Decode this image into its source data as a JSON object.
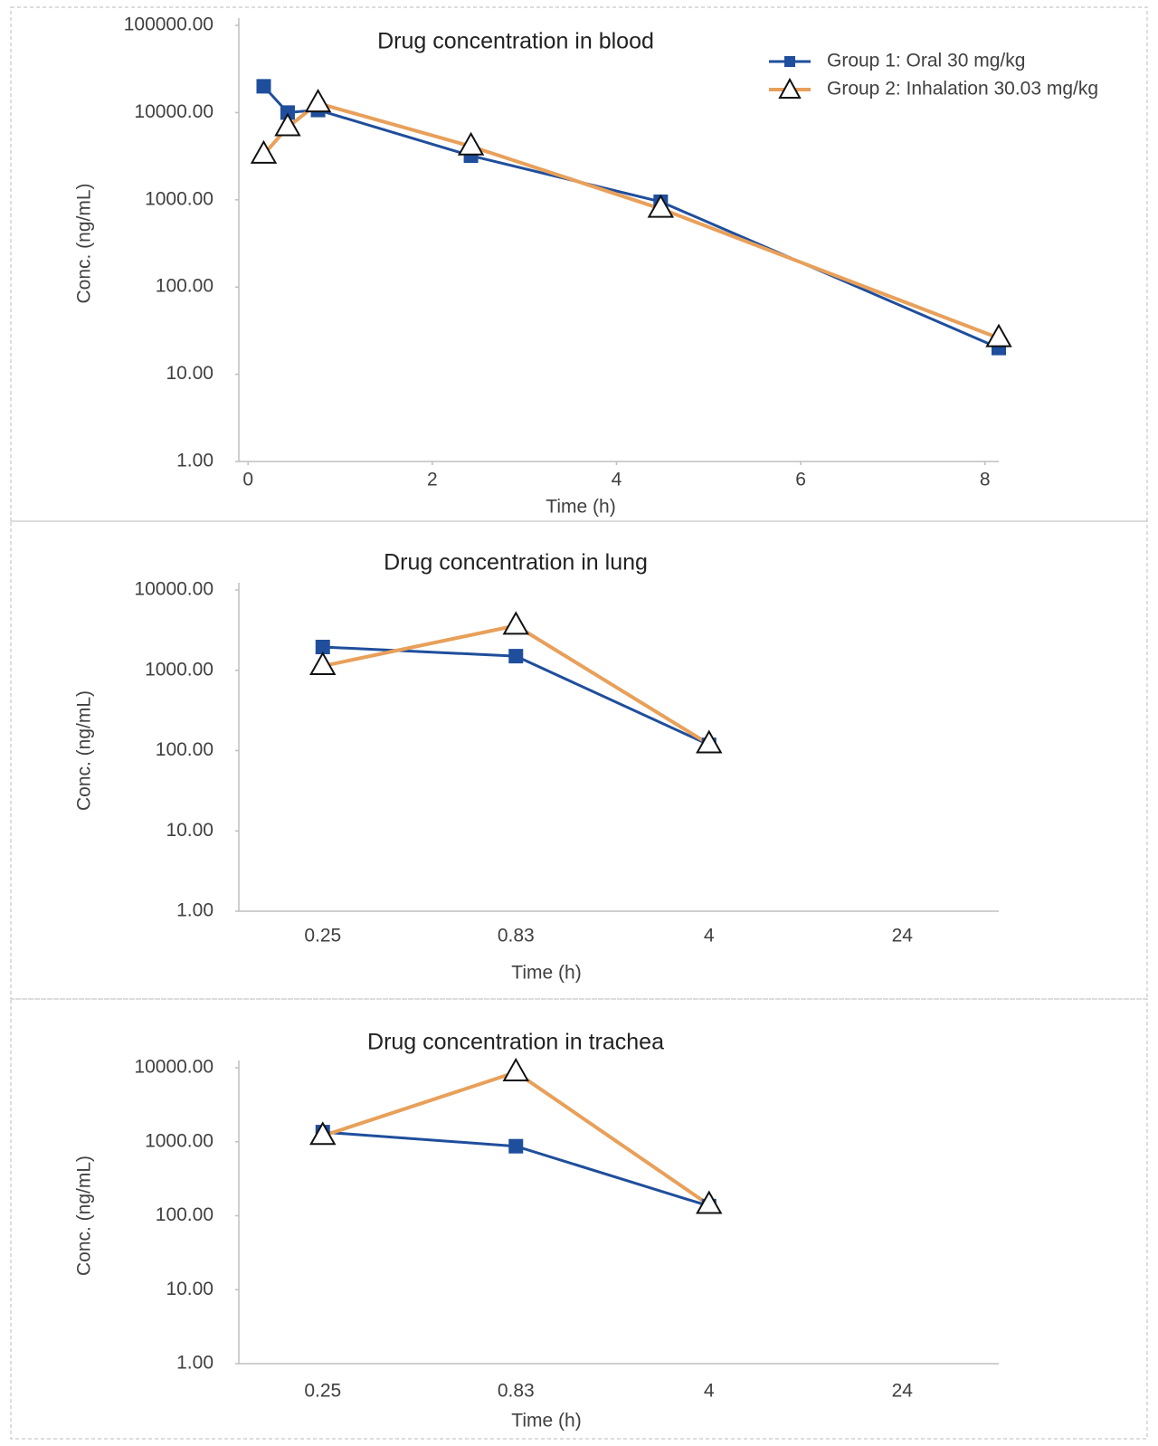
{
  "chart_data": [
    {
      "type": "line",
      "title": "Drug concentration in blood",
      "x_label": "Time (h)",
      "y_label": "Conc. (ng/mL)",
      "ylog": true,
      "legend": "top-right",
      "xlim": [
        -0.1,
        8.15
      ],
      "xticks": [
        0,
        2,
        4,
        6,
        8
      ],
      "ylim": [
        1,
        100000
      ],
      "yticks": [
        {
          "value": 1,
          "label": "1.00"
        },
        {
          "value": 10,
          "label": "10.00"
        },
        {
          "value": 100,
          "label": "100.00"
        },
        {
          "value": 1000,
          "label": "1000.00"
        },
        {
          "value": 10000,
          "label": "10000.00"
        },
        {
          "value": 100000,
          "label": "100000.00"
        }
      ],
      "series": [
        {
          "name": "Group 1: Oral 30 mg/kg",
          "color": "#1f4e9c",
          "marker": "square",
          "x": [
            0.17,
            0.43,
            0.76,
            2.42,
            4.48,
            8.15
          ],
          "values": [
            20000,
            10000,
            10700,
            3200,
            950,
            20
          ]
        },
        {
          "name": "Group 2: Inhalation 30.03 mg/kg",
          "color": "#e8a05a",
          "marker": "triangle",
          "x": [
            0.17,
            0.43,
            0.76,
            2.42,
            4.48,
            8.15
          ],
          "values": [
            3300,
            6800,
            12800,
            4100,
            790,
            26
          ]
        }
      ]
    },
    {
      "type": "line",
      "title": "Drug concentration in lung",
      "x_label": "Time (h)",
      "y_label": "Conc. (ng/mL)",
      "ylog": true,
      "categories": [
        "0.25",
        "0.83",
        "4",
        "24"
      ],
      "ylim": [
        1,
        10000
      ],
      "yticks": [
        {
          "value": 1,
          "label": "1.00"
        },
        {
          "value": 10,
          "label": "10.00"
        },
        {
          "value": 100,
          "label": "100.00"
        },
        {
          "value": 1000,
          "label": "1000.00"
        },
        {
          "value": 10000,
          "label": "10000.00"
        }
      ],
      "series": [
        {
          "color": "#1f4e9c",
          "marker": "square",
          "values": [
            1950,
            1500,
            118,
            null
          ]
        },
        {
          "color": "#e8a05a",
          "marker": "triangle",
          "values": [
            1130,
            3600,
            120,
            null
          ]
        }
      ]
    },
    {
      "type": "line",
      "title": "Drug concentration in trachea",
      "x_label": "Time (h)",
      "y_label": "Conc. (ng/mL)",
      "ylog": true,
      "categories": [
        "0.25",
        "0.83",
        "4",
        "24"
      ],
      "ylim": [
        1,
        10000
      ],
      "yticks": [
        {
          "value": 1,
          "label": "1.00"
        },
        {
          "value": 10,
          "label": "10.00"
        },
        {
          "value": 100,
          "label": "100.00"
        },
        {
          "value": 1000,
          "label": "1000.00"
        },
        {
          "value": 10000,
          "label": "10000.00"
        }
      ],
      "series": [
        {
          "color": "#1f4e9c",
          "marker": "square",
          "values": [
            1350,
            870,
            135,
            null
          ]
        },
        {
          "color": "#e8a05a",
          "marker": "triangle",
          "values": [
            1200,
            8700,
            140,
            null
          ]
        }
      ]
    }
  ]
}
